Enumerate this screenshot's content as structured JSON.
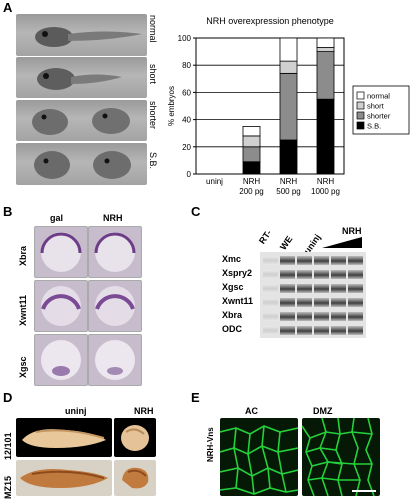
{
  "panels": {
    "A": {
      "letter": "A",
      "photo_labels": [
        "normal",
        "short",
        "shorter",
        "S.B."
      ],
      "chart_data": {
        "type": "bar",
        "stacked": true,
        "title": "NRH overexpression phenotype",
        "ylabel": "% embryos",
        "xlabel": "",
        "ylim": [
          0,
          100
        ],
        "yticks": [
          0,
          20,
          40,
          60,
          80,
          100
        ],
        "grid": true,
        "legend_position": "right",
        "categories": [
          "uninj",
          "NRH\n200 pg",
          "NRH\n500 pg",
          "NRH\n1000 pg"
        ],
        "series": [
          {
            "name": "S.B.",
            "color": "#000000",
            "values": [
              0,
              9,
              25,
              55
            ]
          },
          {
            "name": "shorter",
            "color": "#8c8c8c",
            "values": [
              0,
              11,
              49,
              35
            ]
          },
          {
            "name": "short",
            "color": "#d0d0d0",
            "values": [
              0,
              8,
              9,
              3
            ]
          },
          {
            "name": "normal",
            "color": "#ffffff",
            "values": [
              0,
              7,
              17,
              7
            ]
          }
        ]
      }
    },
    "B": {
      "letter": "B",
      "column_labels": [
        "gal",
        "NRH"
      ],
      "row_labels": [
        "Xbra",
        "Xwnt11",
        "Xgsc"
      ]
    },
    "C": {
      "letter": "C",
      "column_labels": [
        "RT-",
        "WE",
        "uninj",
        "NRH"
      ],
      "row_labels": [
        "Xmc",
        "Xspry2",
        "Xgsc",
        "Xwnt11",
        "Xbra",
        "ODC"
      ]
    },
    "D": {
      "letter": "D",
      "column_labels": [
        "uninj",
        "NRH"
      ],
      "row_labels": [
        "12/101",
        "MZ15"
      ]
    },
    "E": {
      "letter": "E",
      "column_labels": [
        "AC",
        "DMZ"
      ],
      "side_label": "NRH-Vns"
    }
  }
}
